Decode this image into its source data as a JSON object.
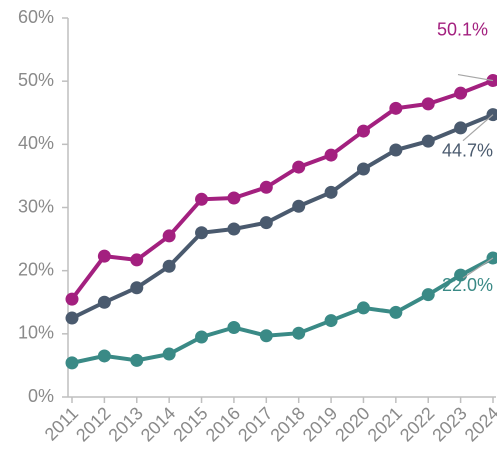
{
  "chart_data": {
    "type": "line",
    "categories": [
      "2011",
      "2012",
      "2013",
      "2014",
      "2015",
      "2016",
      "2017",
      "2018",
      "2019",
      "2020",
      "2021",
      "2022",
      "2023",
      "2024"
    ],
    "series": [
      {
        "color": "#a3207f",
        "values": [
          15.5,
          22.3,
          21.7,
          25.5,
          31.3,
          31.5,
          33.2,
          36.4,
          38.3,
          42.1,
          45.7,
          46.4,
          48.1,
          50.1
        ],
        "value_labels": [
          null,
          null,
          null,
          null,
          null,
          null,
          null,
          null,
          null,
          null,
          null,
          null,
          null,
          "50.1%"
        ]
      },
      {
        "color": "#4a5a6e",
        "values": [
          12.5,
          15.0,
          17.3,
          20.7,
          26.0,
          26.6,
          27.6,
          30.2,
          32.4,
          36.1,
          39.1,
          40.5,
          42.6,
          44.7
        ],
        "value_labels": [
          null,
          null,
          null,
          null,
          null,
          null,
          null,
          null,
          null,
          null,
          null,
          null,
          null,
          "44.7%"
        ]
      },
      {
        "color": "#3a8a86",
        "values": [
          5.4,
          6.5,
          5.8,
          6.8,
          9.5,
          11.0,
          9.7,
          10.1,
          12.1,
          14.1,
          13.4,
          16.2,
          19.3,
          22.0
        ],
        "value_labels": [
          null,
          null,
          null,
          null,
          null,
          null,
          null,
          null,
          null,
          null,
          null,
          null,
          null,
          "22.0%"
        ]
      }
    ],
    "ylim": [
      0,
      60
    ],
    "yticks": [
      {
        "value": 0,
        "label": "0%"
      },
      {
        "value": 10,
        "label": "10%"
      },
      {
        "value": 20,
        "label": "20%"
      },
      {
        "value": 30,
        "label": "30%"
      },
      {
        "value": 40,
        "label": "40%"
      },
      {
        "value": 50,
        "label": "50%"
      },
      {
        "value": 60,
        "label": "60%"
      }
    ],
    "grid": false
  }
}
